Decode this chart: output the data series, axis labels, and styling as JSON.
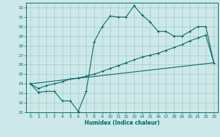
{
  "xlabel": "Humidex (Indice chaleur)",
  "bg_color": "#cce8e8",
  "grid_color": "#aacccc",
  "line_color": "#006666",
  "xlim": [
    -0.5,
    23.5
  ],
  "ylim": [
    21,
    32.5
  ],
  "xticks": [
    0,
    1,
    2,
    3,
    4,
    5,
    6,
    7,
    8,
    9,
    10,
    11,
    12,
    13,
    14,
    15,
    16,
    17,
    18,
    19,
    20,
    21,
    22,
    23
  ],
  "yticks": [
    21,
    22,
    23,
    24,
    25,
    26,
    27,
    28,
    29,
    30,
    31,
    32
  ],
  "series1_x": [
    0,
    1,
    2,
    3,
    4,
    5,
    6,
    7,
    8,
    9,
    10,
    11,
    12,
    13,
    14,
    15,
    16,
    17,
    18,
    19,
    20,
    21,
    22,
    23
  ],
  "series1_y": [
    24.0,
    23.1,
    23.2,
    23.2,
    22.2,
    22.2,
    21.1,
    23.2,
    28.4,
    30.0,
    31.1,
    31.0,
    31.0,
    32.2,
    31.2,
    30.5,
    29.5,
    29.5,
    29.0,
    29.0,
    29.5,
    30.0,
    30.0,
    26.2
  ],
  "series2_x": [
    0,
    1,
    2,
    3,
    4,
    5,
    6,
    7,
    8,
    9,
    10,
    11,
    12,
    13,
    14,
    15,
    16,
    17,
    18,
    19,
    20,
    21,
    22,
    23
  ],
  "series2_y": [
    24.0,
    23.5,
    23.8,
    24.0,
    24.2,
    24.5,
    24.6,
    24.8,
    25.0,
    25.3,
    25.6,
    25.9,
    26.2,
    26.5,
    26.8,
    27.0,
    27.2,
    27.5,
    27.8,
    28.1,
    28.5,
    28.8,
    29.1,
    26.2
  ],
  "series3_x": [
    0,
    23
  ],
  "series3_y": [
    24.0,
    26.2
  ]
}
